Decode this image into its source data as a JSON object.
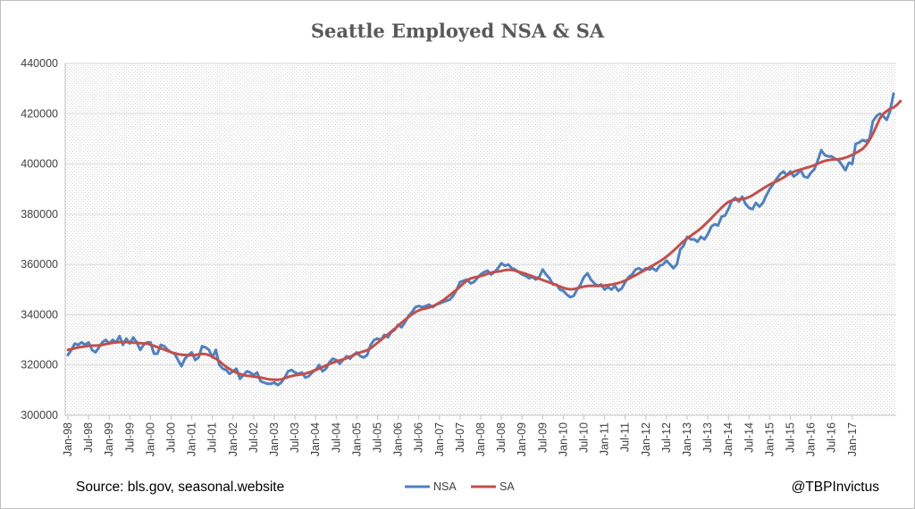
{
  "chart_data": {
    "type": "line",
    "title": "Seattle Employed NSA & SA",
    "xlabel": "",
    "ylabel": "",
    "ylim": [
      300000,
      440000
    ],
    "yticks": [
      "300000",
      "320000",
      "340000",
      "360000",
      "380000",
      "400000",
      "420000",
      "440000"
    ],
    "x_start": "Jan-98",
    "x_end": "Feb-17",
    "xticks": [
      "Jan-98",
      "Jul-98",
      "Jan-99",
      "Jul-99",
      "Jan-00",
      "Jul-00",
      "Jan-01",
      "Jul-01",
      "Jan-02",
      "Jul-02",
      "Jan-03",
      "Jul-03",
      "Jan-04",
      "Jul-04",
      "Jan-05",
      "Jul-05",
      "Jan-06",
      "Jul-06",
      "Jan-07",
      "Jul-07",
      "Jan-08",
      "Jul-08",
      "Jan-09",
      "Jul-09",
      "Jan-10",
      "Jul-10",
      "Jan-11",
      "Jul-11",
      "Jan-12",
      "Jul-12",
      "Jan-13",
      "Jul-13",
      "Jan-14",
      "Jul-14",
      "Jan-15",
      "Jul-15",
      "Jan-16",
      "Jul-16",
      "Jan-17"
    ],
    "grid": "horizontal",
    "legend_position": "bottom",
    "series": [
      {
        "name": "NSA",
        "color": "#4f81bd",
        "values": [
          324000,
          326000,
          328500,
          328000,
          329000,
          328000,
          329000,
          326000,
          325000,
          327000,
          329000,
          330000,
          328500,
          330000,
          329000,
          331500,
          328000,
          330500,
          328500,
          331000,
          329000,
          326000,
          328000,
          329000,
          329000,
          324500,
          324500,
          328000,
          327500,
          326000,
          325000,
          324500,
          322000,
          319500,
          322500,
          324000,
          325000,
          322000,
          323000,
          327500,
          327000,
          326000,
          323000,
          326000,
          320000,
          318500,
          318000,
          316500,
          317500,
          318500,
          314500,
          316000,
          317500,
          317000,
          316000,
          317000,
          313500,
          313000,
          312500,
          312500,
          313000,
          312000,
          313000,
          315000,
          317500,
          318000,
          317000,
          316500,
          317000,
          315000,
          315500,
          317000,
          318000,
          320000,
          317500,
          318500,
          321000,
          322500,
          322000,
          320500,
          322000,
          323500,
          322500,
          324000,
          325000,
          323500,
          323000,
          324000,
          328000,
          330000,
          330500,
          330000,
          332000,
          331000,
          333000,
          334000,
          336000,
          335000,
          337000,
          339500,
          341000,
          343000,
          343500,
          343000,
          343500,
          344000,
          343000,
          344000,
          344500,
          345000,
          345500,
          346000,
          347500,
          350000,
          353000,
          353500,
          354000,
          352500,
          353000,
          354500,
          356000,
          357000,
          357500,
          356000,
          357000,
          358500,
          360500,
          359500,
          360000,
          358500,
          358000,
          357000,
          356000,
          355500,
          354500,
          355000,
          354000,
          355000,
          358000,
          356000,
          354500,
          352000,
          352000,
          350000,
          349500,
          348000,
          347000,
          347500,
          350000,
          352000,
          355000,
          356500,
          354000,
          352500,
          351500,
          352000,
          350000,
          351000,
          350000,
          351500,
          349500,
          350500,
          353000,
          355000,
          356000,
          358000,
          358500,
          357500,
          358500,
          358000,
          358500,
          357500,
          359500,
          360000,
          361500,
          360000,
          358500,
          360000,
          366000,
          367500,
          371000,
          370000,
          370000,
          369000,
          371000,
          370000,
          372000,
          375000,
          376000,
          375500,
          379000,
          379500,
          382000,
          385500,
          386500,
          385000,
          387000,
          384000,
          382500,
          382000,
          384500,
          383000,
          384500,
          387500,
          390000,
          392000,
          394000,
          396000,
          397000,
          395500,
          397000,
          395000,
          396000,
          397500,
          395000,
          394500,
          396500,
          398000,
          401500,
          405500,
          403500,
          403000,
          403000,
          402000,
          401500,
          399500,
          397500,
          400500,
          400000,
          408000,
          408500,
          409500,
          409000,
          410000,
          417000,
          419000,
          420000,
          419000,
          417500,
          421000,
          428000
        ]
      },
      {
        "name": "SA",
        "color": "#c0504d",
        "values": [
          326000,
          326300,
          326600,
          327000,
          327200,
          327400,
          327600,
          327700,
          327700,
          327800,
          328000,
          328300,
          328600,
          328800,
          329000,
          329100,
          329100,
          329100,
          329000,
          328900,
          328800,
          328700,
          328600,
          328500,
          328100,
          327600,
          327100,
          326600,
          326100,
          325600,
          325100,
          324700,
          324300,
          324100,
          324000,
          323900,
          323900,
          324000,
          324200,
          324400,
          324300,
          323900,
          323300,
          322500,
          321500,
          320300,
          319300,
          318400,
          317600,
          316900,
          316400,
          316000,
          315700,
          315600,
          315400,
          315200,
          315000,
          314700,
          314400,
          314200,
          314100,
          314100,
          314300,
          314700,
          315200,
          315600,
          315900,
          316100,
          316300,
          316600,
          317000,
          317500,
          318000,
          318600,
          319200,
          319800,
          320400,
          320900,
          321400,
          321800,
          322200,
          322700,
          323300,
          323900,
          324500,
          325000,
          325400,
          325900,
          326700,
          327700,
          328800,
          330000,
          331100,
          332200,
          333300,
          334400,
          335600,
          336800,
          338000,
          339100,
          340100,
          341000,
          341700,
          342200,
          342500,
          342900,
          343400,
          344000,
          344800,
          345700,
          346700,
          347800,
          348900,
          350000,
          351200,
          352500,
          353600,
          354400,
          354800,
          355100,
          355400,
          355800,
          356300,
          356700,
          357000,
          357200,
          357400,
          357700,
          357900,
          357800,
          357500,
          357100,
          356700,
          356300,
          355800,
          355300,
          354800,
          354300,
          353800,
          353300,
          352800,
          352300,
          351800,
          351200,
          350700,
          350300,
          350100,
          350200,
          350500,
          350900,
          351200,
          351400,
          351500,
          351500,
          351500,
          351500,
          351600,
          351800,
          352000,
          352300,
          352600,
          353100,
          353600,
          354300,
          355000,
          355700,
          356500,
          357200,
          358000,
          358800,
          359600,
          360400,
          361200,
          362100,
          363100,
          364200,
          365400,
          366700,
          368000,
          369300,
          370400,
          371300,
          372300,
          373300,
          374400,
          375700,
          377000,
          378400,
          379800,
          381200,
          382600,
          383900,
          384900,
          385500,
          385800,
          385900,
          386000,
          386300,
          386800,
          387500,
          388400,
          389300,
          390200,
          391000,
          391800,
          392500,
          393100,
          393800,
          394600,
          395400,
          396200,
          396900,
          397400,
          397800,
          398200,
          398600,
          399000,
          399500,
          400100,
          400700,
          401200,
          401500,
          401700,
          401800,
          401900,
          402100,
          402500,
          403000,
          403600,
          404300,
          405100,
          406000,
          407500,
          409500,
          412000,
          415000,
          418000,
          420000,
          421000,
          422000,
          422500,
          423500,
          425000
        ]
      }
    ],
    "annotations": {
      "source": "Source: bls.gov, seasonal.website",
      "handle": "@TBPInvictus"
    }
  }
}
